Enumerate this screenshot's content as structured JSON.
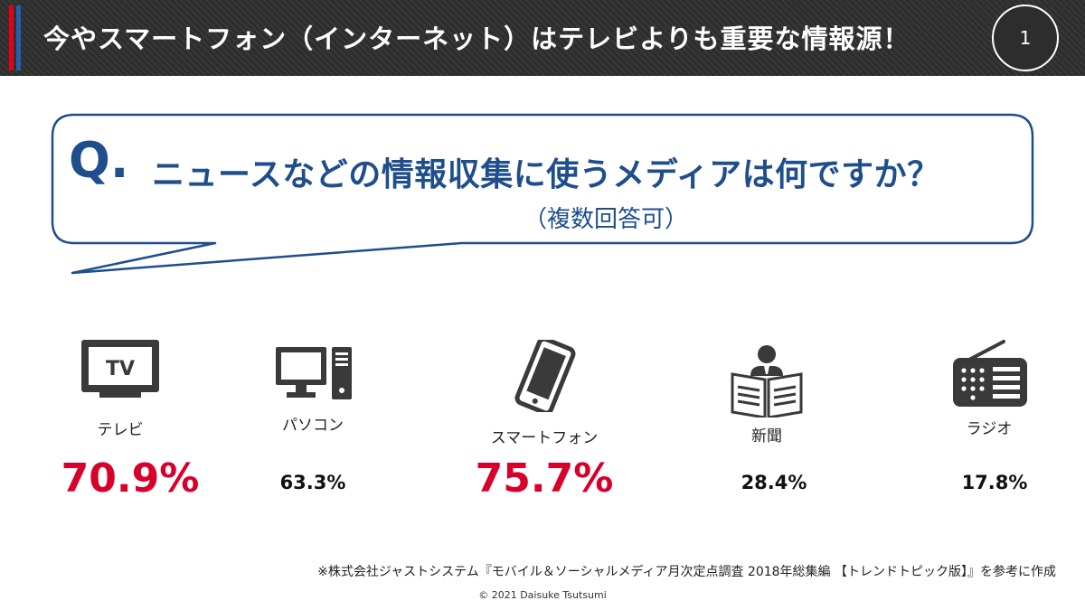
{
  "header": {
    "title": "今やスマートフォン（インターネット）はテレビよりも重要な情報源！",
    "page_number": "1",
    "stripe_colors": [
      "#e60012",
      "#1f5fb4"
    ]
  },
  "question": {
    "q_mark": "Q.",
    "text": "ニュースなどの情報収集に使うメディアは何ですか？",
    "note": "（複数回答可）",
    "color": "#1f4e8c"
  },
  "media": [
    {
      "label": "テレビ",
      "value": "70.9%",
      "icon": "tv-icon",
      "highlight": true
    },
    {
      "label": "パソコン",
      "value": "63.3%",
      "icon": "desktop-computer-icon",
      "highlight": false
    },
    {
      "label": "スマートフォン",
      "value": "75.7%",
      "icon": "smartphone-icon",
      "highlight": true
    },
    {
      "label": "新聞",
      "value": "28.4%",
      "icon": "newspaper-reader-icon",
      "highlight": false
    },
    {
      "label": "ラジオ",
      "value": "17.8%",
      "icon": "radio-icon",
      "highlight": false
    }
  ],
  "highlight_color": "#d7002a",
  "source": "※株式会社ジャストシステム『モバイル＆ソーシャルメディア月次定点調査 2018年総集編 【トレンドトピック版】』を参考に作成",
  "copyright": "© 2021 Daisuke Tsutsumi"
}
